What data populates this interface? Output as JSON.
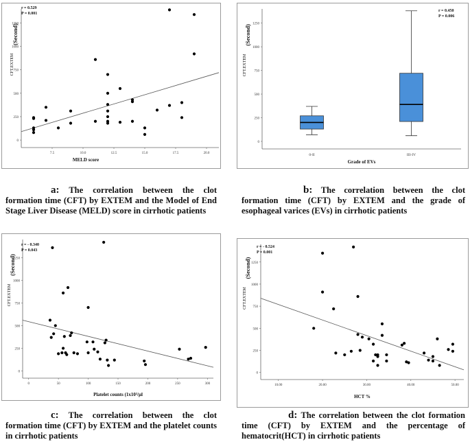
{
  "chart_data": [
    {
      "id": "a",
      "type": "scatter",
      "xlabel": "MELD score",
      "ylabel_main": "CFT.EXTEM",
      "ylabel_unit": "(Second)",
      "stats": [
        "r = 0.529",
        "P = 0.001"
      ],
      "xlim": [
        5,
        21
      ],
      "ylim": [
        -80,
        1400
      ],
      "xticks": [
        "7.5",
        "10.0",
        "12.5",
        "15.0",
        "17.5",
        "20.0"
      ],
      "xtick_values": [
        7.5,
        10,
        12.5,
        15,
        17.5,
        20
      ],
      "yticks": [
        "0",
        "250",
        "500",
        "750",
        "1000",
        "1250"
      ],
      "ytick_values": [
        0,
        250,
        500,
        750,
        1000,
        1250
      ],
      "points": [
        {
          "x": 6,
          "y": 240
        },
        {
          "x": 6,
          "y": 230
        },
        {
          "x": 6,
          "y": 130
        },
        {
          "x": 6,
          "y": 110
        },
        {
          "x": 6,
          "y": 80
        },
        {
          "x": 7,
          "y": 350
        },
        {
          "x": 7,
          "y": 210
        },
        {
          "x": 8,
          "y": 130
        },
        {
          "x": 9,
          "y": 310
        },
        {
          "x": 9,
          "y": 180
        },
        {
          "x": 11,
          "y": 200
        },
        {
          "x": 11,
          "y": 860
        },
        {
          "x": 12,
          "y": 700
        },
        {
          "x": 12,
          "y": 500
        },
        {
          "x": 12,
          "y": 380
        },
        {
          "x": 12,
          "y": 310
        },
        {
          "x": 12,
          "y": 250
        },
        {
          "x": 12,
          "y": 200
        },
        {
          "x": 12,
          "y": 180
        },
        {
          "x": 13,
          "y": 550
        },
        {
          "x": 13,
          "y": 190
        },
        {
          "x": 14,
          "y": 430
        },
        {
          "x": 14,
          "y": 410
        },
        {
          "x": 14,
          "y": 200
        },
        {
          "x": 15,
          "y": 130
        },
        {
          "x": 15,
          "y": 60
        },
        {
          "x": 16,
          "y": 320
        },
        {
          "x": 17,
          "y": 1390
        },
        {
          "x": 17,
          "y": 370
        },
        {
          "x": 18,
          "y": 400
        },
        {
          "x": 18,
          "y": 240
        },
        {
          "x": 19,
          "y": 1340
        },
        {
          "x": 19,
          "y": 920
        }
      ],
      "regression": {
        "x1": 5,
        "y1": 90,
        "x2": 21,
        "y2": 720
      }
    },
    {
      "id": "b",
      "type": "box",
      "xlabel": "Grade of EVs",
      "ylabel_main": "CFT.EXTEM",
      "ylabel_unit": "(Second)",
      "stats": [
        "r = 0.450",
        "P = 0.006"
      ],
      "ylim": [
        -80,
        1400
      ],
      "yticks": [
        "0",
        "250",
        "500",
        "750",
        "1000",
        "1250"
      ],
      "ytick_values": [
        0,
        250,
        500,
        750,
        1000,
        1250
      ],
      "categories": [
        "0-II",
        "III-IV"
      ],
      "boxes": [
        {
          "min": 70,
          "q1": 130,
          "median": 200,
          "q3": 270,
          "max": 370
        },
        {
          "min": 60,
          "q1": 210,
          "median": 390,
          "q3": 720,
          "max": 1380
        }
      ],
      "box_color": "#4a90d9"
    },
    {
      "id": "c",
      "type": "scatter",
      "xlabel": "Platelet counts (1x10³/µl",
      "ylabel_main": "CFT.EXTEM",
      "ylabel_unit": "(Second)",
      "stats": [
        "r = - 0.340",
        "P = 0.043"
      ],
      "xlim": [
        -10,
        310
      ],
      "ylim": [
        -80,
        1450
      ],
      "xticks": [
        "0",
        "50",
        "100",
        "150",
        "200",
        "250",
        "300"
      ],
      "xtick_values": [
        0,
        50,
        100,
        150,
        200,
        250,
        300
      ],
      "yticks": [
        "0",
        "250",
        "500",
        "750",
        "1000",
        "1250"
      ],
      "ytick_values": [
        0,
        250,
        500,
        750,
        1000,
        1250
      ],
      "points": [
        {
          "x": 36,
          "y": 560
        },
        {
          "x": 38,
          "y": 370
        },
        {
          "x": 40,
          "y": 1360
        },
        {
          "x": 42,
          "y": 410
        },
        {
          "x": 45,
          "y": 500
        },
        {
          "x": 50,
          "y": 190
        },
        {
          "x": 56,
          "y": 200
        },
        {
          "x": 58,
          "y": 250
        },
        {
          "x": 58,
          "y": 860
        },
        {
          "x": 60,
          "y": 380
        },
        {
          "x": 62,
          "y": 200
        },
        {
          "x": 64,
          "y": 180
        },
        {
          "x": 66,
          "y": 920
        },
        {
          "x": 70,
          "y": 390
        },
        {
          "x": 72,
          "y": 420
        },
        {
          "x": 76,
          "y": 200
        },
        {
          "x": 82,
          "y": 190
        },
        {
          "x": 98,
          "y": 320
        },
        {
          "x": 100,
          "y": 200
        },
        {
          "x": 100,
          "y": 700
        },
        {
          "x": 108,
          "y": 320
        },
        {
          "x": 110,
          "y": 240
        },
        {
          "x": 116,
          "y": 210
        },
        {
          "x": 120,
          "y": 130
        },
        {
          "x": 126,
          "y": 1420
        },
        {
          "x": 128,
          "y": 310
        },
        {
          "x": 130,
          "y": 340
        },
        {
          "x": 132,
          "y": 120
        },
        {
          "x": 134,
          "y": 60
        },
        {
          "x": 144,
          "y": 120
        },
        {
          "x": 194,
          "y": 110
        },
        {
          "x": 196,
          "y": 70
        },
        {
          "x": 253,
          "y": 240
        },
        {
          "x": 268,
          "y": 130
        },
        {
          "x": 272,
          "y": 140
        },
        {
          "x": 297,
          "y": 260
        }
      ],
      "regression": {
        "x1": -10,
        "y1": 560,
        "x2": 310,
        "y2": 40
      }
    },
    {
      "id": "d",
      "type": "scatter",
      "xlabel": "HCT %",
      "ylabel_main": "CFT.EXTEM",
      "ylabel_unit": "(Second)",
      "stats": [
        "r = - 0.524",
        "P = 0.001"
      ],
      "xlim": [
        6,
        52
      ],
      "ylim": [
        -80,
        1450
      ],
      "xticks": [
        "10.00",
        "20.00",
        "30.00",
        "40.00",
        "50.00"
      ],
      "xtick_values": [
        10,
        20,
        30,
        40,
        50
      ],
      "yticks": [
        "0",
        "250",
        "500",
        "750",
        "1000",
        "1250"
      ],
      "ytick_values": [
        0,
        250,
        500,
        750,
        1000,
        1250
      ],
      "points": [
        {
          "x": 18,
          "y": 500
        },
        {
          "x": 20,
          "y": 1350
        },
        {
          "x": 20,
          "y": 910
        },
        {
          "x": 22.5,
          "y": 720
        },
        {
          "x": 23,
          "y": 220
        },
        {
          "x": 25,
          "y": 200
        },
        {
          "x": 26.5,
          "y": 240
        },
        {
          "x": 27,
          "y": 1420
        },
        {
          "x": 28,
          "y": 430
        },
        {
          "x": 28,
          "y": 860
        },
        {
          "x": 28.5,
          "y": 250
        },
        {
          "x": 29,
          "y": 400
        },
        {
          "x": 30.5,
          "y": 380
        },
        {
          "x": 31.5,
          "y": 320
        },
        {
          "x": 31.5,
          "y": 130
        },
        {
          "x": 32,
          "y": 200
        },
        {
          "x": 32.5,
          "y": 200
        },
        {
          "x": 32.5,
          "y": 180
        },
        {
          "x": 32.5,
          "y": 80
        },
        {
          "x": 33.5,
          "y": 550
        },
        {
          "x": 33.5,
          "y": 420
        },
        {
          "x": 34.5,
          "y": 200
        },
        {
          "x": 34.5,
          "y": 130
        },
        {
          "x": 38,
          "y": 310
        },
        {
          "x": 38.5,
          "y": 330
        },
        {
          "x": 39,
          "y": 120
        },
        {
          "x": 39.5,
          "y": 110
        },
        {
          "x": 43,
          "y": 220
        },
        {
          "x": 44,
          "y": 140
        },
        {
          "x": 45,
          "y": 180
        },
        {
          "x": 45,
          "y": 130
        },
        {
          "x": 46,
          "y": 380
        },
        {
          "x": 46.5,
          "y": 80
        },
        {
          "x": 48.5,
          "y": 260
        },
        {
          "x": 49.5,
          "y": 320
        },
        {
          "x": 49.5,
          "y": 240
        }
      ],
      "regression": {
        "x1": 6,
        "y1": 840,
        "x2": 52,
        "y2": 30
      }
    }
  ],
  "captions": [
    {
      "label": "a:",
      "text": " The correlation between the clot formation time (CFT) by EXTEM and the Model of End Stage Liver Disease (MELD) score in cirrhotic patients"
    },
    {
      "label": "b:",
      "text": " The correlation between the clot formation time (CFT) by EXTEM and the grade of esophageal varices (EVs) in cirrhotic patients"
    },
    {
      "label": "c:",
      "text": " The correlation between the clot formation time (CFT) by EXTEM and the platelet counts in cirrhotic patients"
    },
    {
      "label": "d:",
      "text": " The correlation between the clot formation time (CFT) by EXTEM and the percentage of hematocrit(HCT) in cirrhotic patients"
    }
  ]
}
